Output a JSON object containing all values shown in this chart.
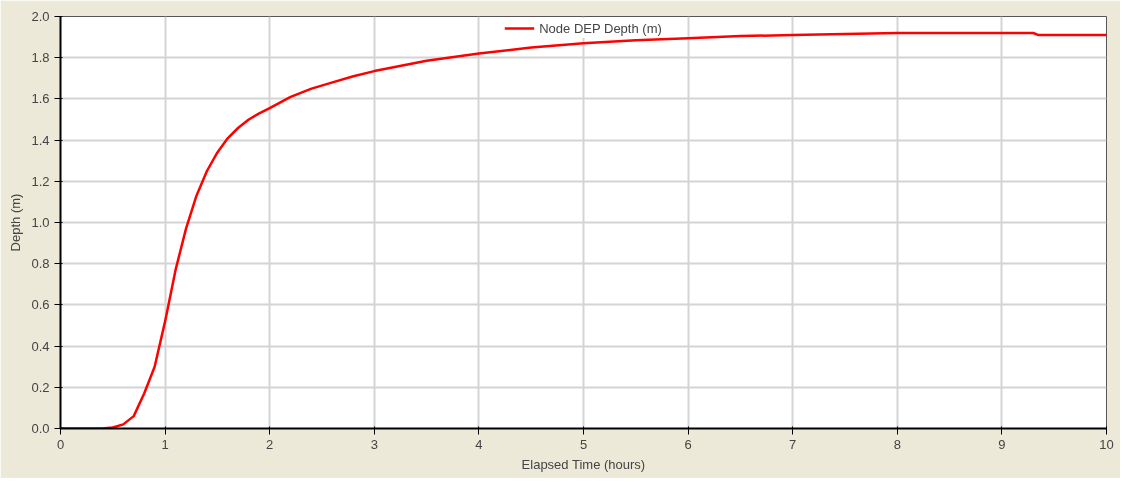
{
  "chart_data": {
    "type": "line",
    "xlabel": "Elapsed Time (hours)",
    "ylabel": "Depth (m)",
    "x": [
      0,
      0.4,
      0.5,
      0.6,
      0.7,
      0.8,
      0.9,
      1.0,
      1.1,
      1.2,
      1.3,
      1.4,
      1.5,
      1.6,
      1.7,
      1.8,
      1.9,
      2.0,
      2.2,
      2.4,
      2.6,
      2.8,
      3.0,
      3.5,
      4.0,
      4.5,
      5.0,
      5.5,
      6.0,
      6.5,
      7.0,
      7.5,
      8.0,
      9.3,
      9.35,
      10.0
    ],
    "series": [
      {
        "name": "Node DEP Depth (m)",
        "color": "#ff0000",
        "values": [
          0,
          0,
          0.005,
          0.02,
          0.06,
          0.17,
          0.3,
          0.52,
          0.77,
          0.97,
          1.13,
          1.25,
          1.34,
          1.41,
          1.46,
          1.5,
          1.53,
          1.555,
          1.61,
          1.65,
          1.68,
          1.71,
          1.735,
          1.785,
          1.82,
          1.85,
          1.87,
          1.885,
          1.895,
          1.905,
          1.91,
          1.915,
          1.92,
          1.92,
          1.91,
          1.91
        ]
      }
    ],
    "xlim": [
      0,
      10
    ],
    "xticks": [
      0,
      1,
      2,
      3,
      4,
      5,
      6,
      7,
      8,
      9,
      10
    ],
    "ylim": [
      0,
      2.0
    ],
    "yticks": [
      {
        "value": 0,
        "label": "0.0"
      },
      {
        "value": 0.2,
        "label": "0.2"
      },
      {
        "value": 0.4,
        "label": "0.4"
      },
      {
        "value": 0.6,
        "label": "0.6"
      },
      {
        "value": 0.8,
        "label": "0.8"
      },
      {
        "value": 1.0,
        "label": "1.0"
      },
      {
        "value": 1.2,
        "label": "1.2"
      },
      {
        "value": 1.4,
        "label": "1.4"
      },
      {
        "value": 1.6,
        "label": "1.6"
      },
      {
        "value": 1.8,
        "label": "1.8"
      },
      {
        "value": 2.0,
        "label": "2.0"
      }
    ],
    "grid": true,
    "legend": "top",
    "marker": "none",
    "line_style": "solid"
  }
}
